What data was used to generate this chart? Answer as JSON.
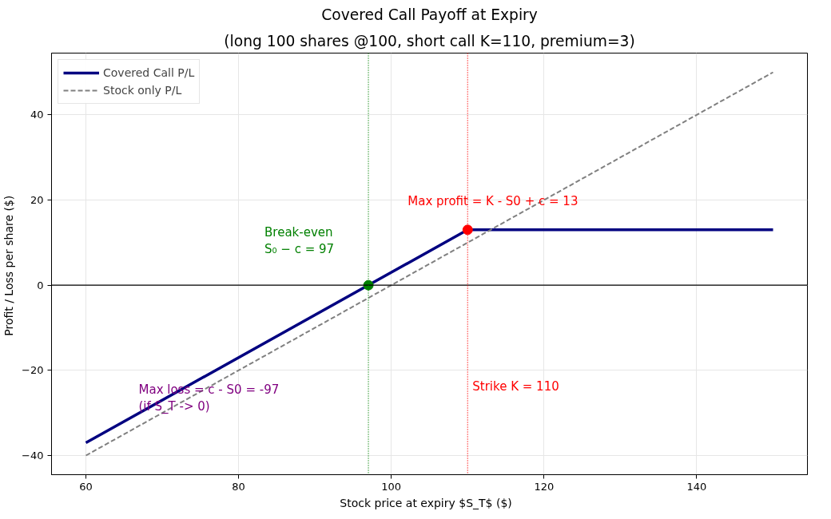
{
  "chart_data": {
    "type": "line",
    "title": "Covered Call Payoff at Expiry",
    "subtitle": "(long 100 shares @100, short call K=110, premium=3)",
    "xlabel": "Stock price at expiry  $S_T$  ($)",
    "ylabel": "Profit / Loss per share  ($)",
    "series": [
      {
        "name": "Covered Call P/L",
        "color": "#000080",
        "x": [
          60,
          110,
          150
        ],
        "values": [
          -37,
          13,
          13
        ],
        "line_style": "solid"
      },
      {
        "name": "Stock only P/L",
        "color": "#808080",
        "x": [
          60,
          150
        ],
        "values": [
          -40,
          50
        ],
        "line_style": "dashed"
      },
      {
        "type": "scatter",
        "color": "#008000",
        "x": [
          97
        ],
        "values": [
          0
        ],
        "marker": "circle"
      },
      {
        "type": "scatter",
        "color": "#ff0000",
        "x": [
          110
        ],
        "values": [
          13
        ],
        "marker": "circle"
      }
    ],
    "ref_lines": [
      {
        "axis": "y",
        "value": 0,
        "color": "#000000",
        "line_style": "solid"
      },
      {
        "axis": "x",
        "value": 97,
        "color": "#008000",
        "line_style": "dotted"
      },
      {
        "axis": "x",
        "value": 110,
        "color": "#ff0000",
        "line_style": "dotted"
      }
    ],
    "annotations": [
      "Break-even\nS₀ − c = 97",
      "Max profit = K - S0 + c = 13",
      "Max loss = c - S0 = -97\n(if S_T -> 0)",
      "Strike K = 110"
    ],
    "xlim": [
      55.5,
      154.5
    ],
    "ylim": [
      -44.5,
      54.5
    ],
    "xticks": [
      60,
      80,
      100,
      120,
      140
    ],
    "yticks": [
      -40,
      -20,
      0,
      20,
      40
    ],
    "grid": true,
    "legend": "top left"
  }
}
